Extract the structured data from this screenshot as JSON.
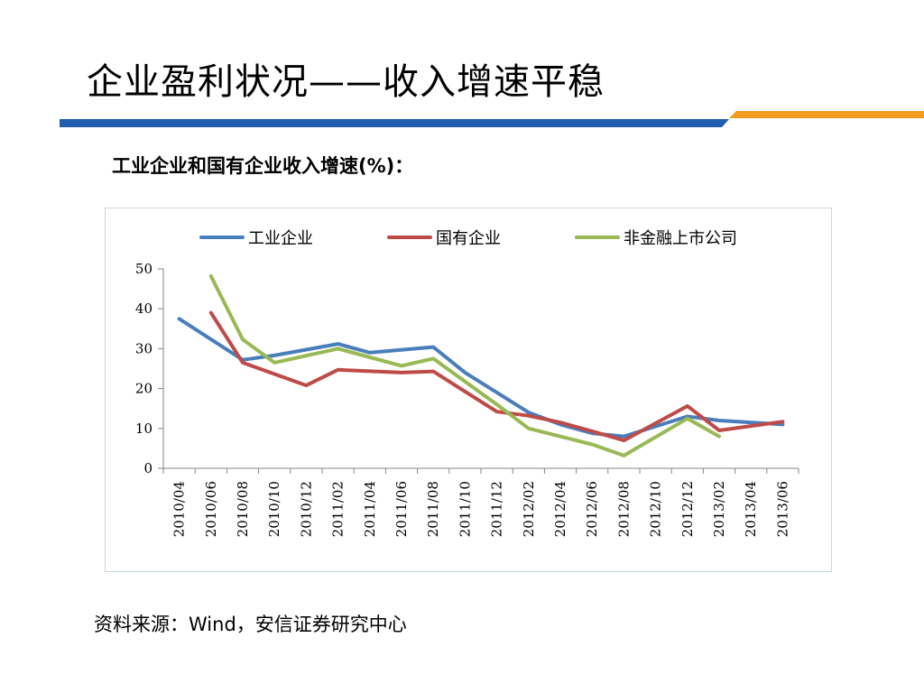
{
  "slide": {
    "title": "企业盈利状况——收入增速平稳",
    "caption": "工业企业和国有企业收入增速(%)：",
    "source": "资料来源：Wind，安信证券研究中心"
  },
  "colors": {
    "rule_blue": "#1f5fae",
    "rule_orange": "#f39c1f",
    "series": [
      "#4a7ebb",
      "#be4b48",
      "#98b954"
    ]
  },
  "chart_data": {
    "type": "line",
    "title": "",
    "xlabel": "",
    "ylabel": "",
    "ylim": [
      0,
      50
    ],
    "yticks": [
      0,
      10,
      20,
      30,
      40,
      50
    ],
    "grid": false,
    "legend_position": "top",
    "categories": [
      "2010/04",
      "2010/06",
      "2010/08",
      "2010/10",
      "2010/12",
      "2011/02",
      "2011/04",
      "2011/06",
      "2011/08",
      "2011/10",
      "2011/12",
      "2012/02",
      "2012/04",
      "2012/06",
      "2012/08",
      "2012/10",
      "2012/12",
      "2013/02",
      "2013/04",
      "2013/06"
    ],
    "series": [
      {
        "name": "工业企业",
        "values": [
          37.5,
          null,
          27.2,
          28.3,
          null,
          31.2,
          29.0,
          null,
          30.4,
          24.0,
          null,
          14.0,
          11.0,
          8.8,
          8.0,
          null,
          13.0,
          12.0,
          null,
          11.0
        ]
      },
      {
        "name": "国有企业",
        "values": [
          null,
          39.0,
          26.5,
          null,
          20.8,
          24.7,
          null,
          24.0,
          24.3,
          null,
          14.2,
          13.2,
          11.5,
          9.3,
          7.0,
          null,
          15.6,
          9.5,
          null,
          11.7
        ]
      },
      {
        "name": "非金融上市公司",
        "values": [
          null,
          48.2,
          32.3,
          26.5,
          null,
          30.0,
          null,
          25.7,
          27.5,
          null,
          16.0,
          10.0,
          null,
          6.0,
          3.2,
          null,
          12.5,
          8.0,
          null,
          null
        ]
      }
    ]
  }
}
